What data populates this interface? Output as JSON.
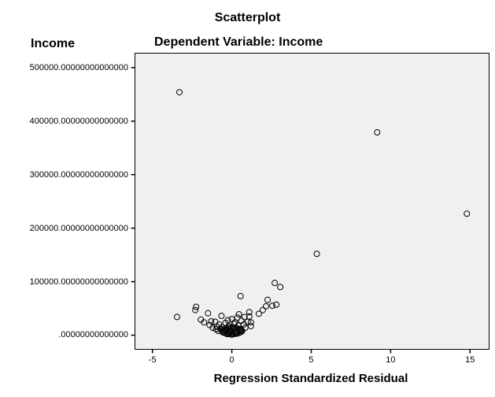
{
  "chart_data": {
    "type": "scatter",
    "title": "Scatterplot",
    "subtitle": "Dependent Variable:  Income",
    "xlabel": "Regression Standardized Residual",
    "ylabel": "Income",
    "xlim": [
      -6.1,
      16.2
    ],
    "ylim": [
      -26500,
      527000
    ],
    "grid": false,
    "legend": null,
    "xticks": [
      -5,
      0,
      5,
      10,
      15
    ],
    "xtick_labels": [
      "-5",
      "0",
      "5",
      "10",
      "15"
    ],
    "yticks": [
      0,
      100000,
      200000,
      300000,
      400000,
      500000
    ],
    "ytick_labels": [
      ".00000000000000",
      "100000.00000000000000",
      "200000.00000000000000",
      "300000.00000000000000",
      "400000.00000000000000",
      "500000.00000000000000"
    ],
    "points": [
      {
        "x": -3.3,
        "y": 454000
      },
      {
        "x": 9.15,
        "y": 379000
      },
      {
        "x": 14.8,
        "y": 227000
      },
      {
        "x": 5.35,
        "y": 152000
      },
      {
        "x": 2.7,
        "y": 97500
      },
      {
        "x": 3.05,
        "y": 90000
      },
      {
        "x": 0.55,
        "y": 73000
      },
      {
        "x": 2.25,
        "y": 66000
      },
      {
        "x": 2.8,
        "y": 57000
      },
      {
        "x": 2.55,
        "y": 55000
      },
      {
        "x": 2.15,
        "y": 54000
      },
      {
        "x": 1.95,
        "y": 47000
      },
      {
        "x": 1.7,
        "y": 40000
      },
      {
        "x": 1.1,
        "y": 43000
      },
      {
        "x": -2.25,
        "y": 53000
      },
      {
        "x": -2.3,
        "y": 47000
      },
      {
        "x": -3.45,
        "y": 34000
      },
      {
        "x": -1.5,
        "y": 41000
      },
      {
        "x": -1.95,
        "y": 29000
      },
      {
        "x": -1.75,
        "y": 24000
      },
      {
        "x": -1.3,
        "y": 26000
      },
      {
        "x": -1.05,
        "y": 25000
      },
      {
        "x": -0.65,
        "y": 36000
      },
      {
        "x": -1.4,
        "y": 19000
      },
      {
        "x": -1.2,
        "y": 14000
      },
      {
        "x": -1.0,
        "y": 11000
      },
      {
        "x": -0.85,
        "y": 8000
      },
      {
        "x": -0.8,
        "y": 20000
      },
      {
        "x": -0.6,
        "y": 15000
      },
      {
        "x": -0.55,
        "y": 5000
      },
      {
        "x": -0.4,
        "y": 23000
      },
      {
        "x": -0.35,
        "y": 10000
      },
      {
        "x": -0.3,
        "y": 2000
      },
      {
        "x": -0.2,
        "y": 17000
      },
      {
        "x": -0.1,
        "y": 8000
      },
      {
        "x": 0.0,
        "y": 30000
      },
      {
        "x": 0.0,
        "y": 1000
      },
      {
        "x": 0.1,
        "y": 14000
      },
      {
        "x": 0.2,
        "y": 24000
      },
      {
        "x": 0.25,
        "y": 6000
      },
      {
        "x": 0.35,
        "y": 33000
      },
      {
        "x": 0.4,
        "y": 18000
      },
      {
        "x": 0.45,
        "y": 39000
      },
      {
        "x": 0.55,
        "y": 11000
      },
      {
        "x": 0.6,
        "y": 27000
      },
      {
        "x": 0.75,
        "y": 20000
      },
      {
        "x": 0.8,
        "y": 34000
      },
      {
        "x": 0.85,
        "y": 14000
      },
      {
        "x": 1.0,
        "y": 25000
      },
      {
        "x": 1.1,
        "y": 35000
      },
      {
        "x": 1.2,
        "y": 24000
      },
      {
        "x": 1.2,
        "y": 17000
      },
      {
        "x": -0.7,
        "y": 12000
      },
      {
        "x": -0.45,
        "y": 7000
      },
      {
        "x": -0.15,
        "y": 4000
      },
      {
        "x": 0.3,
        "y": 3000
      },
      {
        "x": 0.65,
        "y": 8000
      },
      {
        "x": -0.95,
        "y": 16000
      },
      {
        "x": -0.25,
        "y": 28000
      },
      {
        "x": 0.15,
        "y": 21000
      }
    ]
  }
}
